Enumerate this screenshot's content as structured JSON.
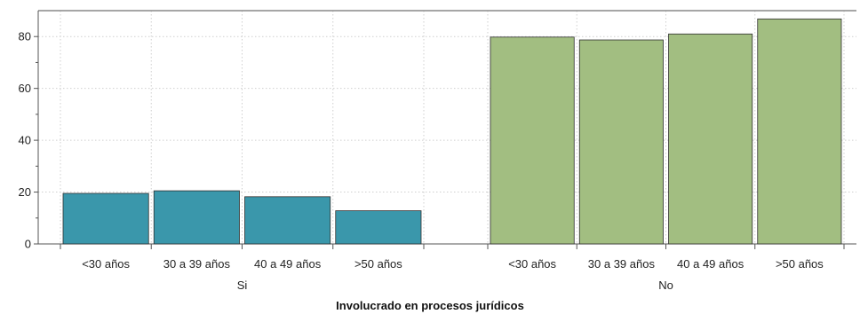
{
  "chart_data": {
    "type": "bar",
    "xlabel": "Involucrado en procesos jurídicos",
    "ylabel": "",
    "ylim": [
      0,
      90
    ],
    "yticks": [
      0,
      20,
      40,
      60,
      80
    ],
    "grid": true,
    "panels": [
      {
        "name": "Si",
        "color": "#3a97ab",
        "categories": [
          "<30 años",
          "30 a 39 años",
          "40 a 49 años",
          ">50 años"
        ],
        "values": [
          19.5,
          20.5,
          18.2,
          12.8
        ]
      },
      {
        "name": "No",
        "color": "#a2be81",
        "categories": [
          "<30 años",
          "30 a 39 años",
          "40 a 49 años",
          ">50 años"
        ],
        "values": [
          79.8,
          78.7,
          81.0,
          86.8
        ]
      }
    ]
  }
}
